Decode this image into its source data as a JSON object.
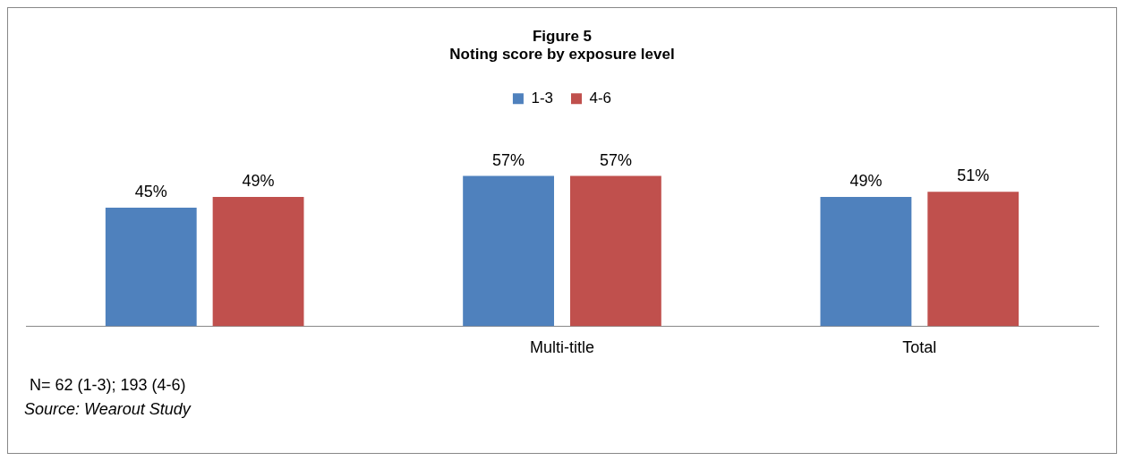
{
  "chart_data": {
    "type": "bar",
    "title": "Figure 5",
    "subtitle": "Noting score by exposure level",
    "categories": [
      null,
      "Multi-title",
      "Total"
    ],
    "series": [
      {
        "name": "1-3",
        "color": "#4f81bd",
        "values": [
          45,
          57,
          49
        ],
        "value_labels": [
          "45%",
          "57%",
          "49%"
        ]
      },
      {
        "name": "4-6",
        "color": "#c0504d",
        "values": [
          49,
          57,
          51
        ],
        "value_labels": [
          "49%",
          "57%",
          "51%"
        ]
      }
    ],
    "legend": "top",
    "grid": false,
    "annotations": [
      "N= 62 (1-3); 193 (4-6)",
      "Source:  Wearout Study"
    ]
  }
}
